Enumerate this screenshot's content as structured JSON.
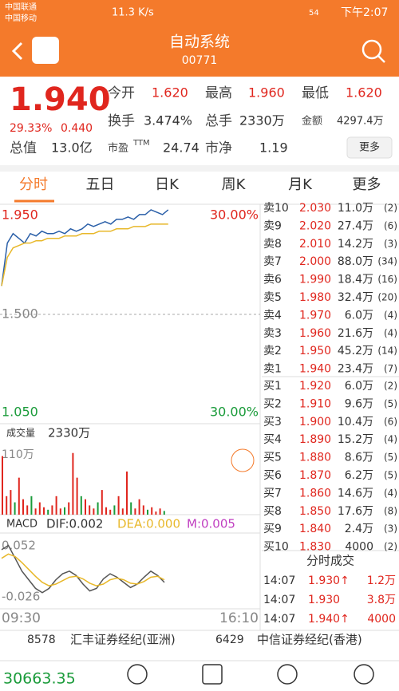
{
  "status": {
    "carrier1": "中国联通",
    "carrier2": "中国移动",
    "speed": "11.3 K/s",
    "battery": "54",
    "time": "下午2:07"
  },
  "header": {
    "title": "自动系统",
    "code": "00771"
  },
  "quote": {
    "price": "1.940",
    "change_pct": "29.33%",
    "change": "0.440",
    "fields": [
      [
        "今开",
        "1.620"
      ],
      [
        "最高",
        "1.960"
      ],
      [
        "最低",
        "1.620"
      ],
      [
        "换手",
        "3.474%"
      ],
      [
        "总手",
        "2330万"
      ],
      [
        "金额",
        "4297.4万"
      ],
      [
        "总值",
        "13.0亿"
      ],
      [
        "市盈",
        "24.74"
      ],
      [
        "市净",
        "1.19"
      ]
    ],
    "pe_sup": "TTM",
    "more": "更多"
  },
  "tabs": [
    "分时",
    "五日",
    "日K",
    "周K",
    "月K",
    "更多"
  ],
  "intraday": {
    "ylim": [
      1.05,
      1.95
    ],
    "yticks": [
      {
        "value": 1.95,
        "label": "1.950"
      },
      {
        "value": 1.5,
        "label": "1.500"
      },
      {
        "value": 1.05,
        "label": "1.050"
      }
    ],
    "pct_labels": [
      "30.00%",
      "30.00%"
    ],
    "price": [
      1.62,
      1.8,
      1.84,
      1.82,
      1.8,
      1.84,
      1.83,
      1.85,
      1.84,
      1.84,
      1.85,
      1.84,
      1.86,
      1.85,
      1.86,
      1.88,
      1.87,
      1.88,
      1.89,
      1.88,
      1.9,
      1.9,
      1.91,
      1.9,
      1.92,
      1.92,
      1.94,
      1.93,
      1.92,
      1.94
    ],
    "avg": [
      1.62,
      1.74,
      1.78,
      1.79,
      1.8,
      1.8,
      1.81,
      1.81,
      1.82,
      1.82,
      1.82,
      1.83,
      1.83,
      1.83,
      1.84,
      1.84,
      1.84,
      1.85,
      1.85,
      1.85,
      1.86,
      1.86,
      1.86,
      1.87,
      1.87,
      1.87,
      1.88,
      1.88,
      1.88,
      1.88
    ],
    "volume_label": "成交量",
    "volume_total": "2330万",
    "volume_ylim": [
      0,
      110
    ],
    "volume_ticks": [
      {
        "value": 110,
        "label": "110万"
      }
    ],
    "volume": [
      95,
      30,
      40,
      20,
      60,
      25,
      15,
      30,
      10,
      20,
      12,
      8,
      15,
      30,
      10,
      12,
      20,
      100,
      60,
      30,
      25,
      15,
      10,
      20,
      40,
      12,
      8,
      15,
      30,
      10,
      70,
      20,
      10,
      25,
      15,
      8,
      12,
      5,
      10,
      6
    ],
    "macd_label": "MACD",
    "dif": "DIF:0.002",
    "dea": "DEA:0.000",
    "m": "M:0.005",
    "macd_ylim": [
      -0.026,
      0.052
    ],
    "macd_ticks": [
      0.052,
      -0.026
    ],
    "dif_values": [
      0.04,
      0.045,
      0.03,
      0.015,
      0.005,
      -0.005,
      -0.01,
      -0.005,
      0.005,
      0.012,
      0.015,
      0.01,
      0.0,
      -0.008,
      -0.005,
      0.006,
      0.012,
      0.008,
      0.002,
      -0.004,
      0.0,
      0.008,
      0.015,
      0.01,
      0.002
    ],
    "dea_values": [
      0.03,
      0.035,
      0.032,
      0.025,
      0.017,
      0.009,
      0.002,
      -0.002,
      0.0,
      0.004,
      0.008,
      0.009,
      0.006,
      0.001,
      -0.002,
      0.0,
      0.005,
      0.007,
      0.005,
      0.001,
      0.0,
      0.003,
      0.008,
      0.009,
      0.005
    ],
    "times": [
      "09:30",
      "16:10"
    ]
  },
  "order_book": [
    [
      "卖10",
      "2.030",
      "11.0万",
      "(2)"
    ],
    [
      "卖9",
      "2.020",
      "27.4万",
      "(6)"
    ],
    [
      "卖8",
      "2.010",
      "14.2万",
      "(3)"
    ],
    [
      "卖7",
      "2.000",
      "88.0万",
      "(34)"
    ],
    [
      "卖6",
      "1.990",
      "18.4万",
      "(16)"
    ],
    [
      "卖5",
      "1.980",
      "32.4万",
      "(20)"
    ],
    [
      "卖4",
      "1.970",
      "6.0万",
      "(4)"
    ],
    [
      "卖3",
      "1.960",
      "21.6万",
      "(4)"
    ],
    [
      "卖2",
      "1.950",
      "45.2万",
      "(14)"
    ],
    [
      "卖1",
      "1.940",
      "23.4万",
      "(7)"
    ],
    [
      "买1",
      "1.920",
      "6.0万",
      "(2)"
    ],
    [
      "买2",
      "1.910",
      "9.6万",
      "(5)"
    ],
    [
      "买3",
      "1.900",
      "10.4万",
      "(6)"
    ],
    [
      "买4",
      "1.890",
      "15.2万",
      "(4)"
    ],
    [
      "买5",
      "1.880",
      "8.6万",
      "(5)"
    ],
    [
      "买6",
      "1.870",
      "6.2万",
      "(5)"
    ],
    [
      "买7",
      "1.860",
      "14.6万",
      "(4)"
    ],
    [
      "买8",
      "1.850",
      "17.6万",
      "(8)"
    ],
    [
      "买9",
      "1.840",
      "2.4万",
      "(3)"
    ],
    [
      "买10",
      "1.830",
      "4000",
      "(2)"
    ]
  ],
  "trades_title": "分时成交",
  "trades": [
    [
      "14:07",
      "1.930↑",
      "1.2万"
    ],
    [
      "14:07",
      "1.930",
      "3.8万"
    ],
    [
      "14:07",
      "1.940↑",
      "4000"
    ]
  ],
  "brokers": [
    "8578",
    "汇丰证券经纪(亚洲)",
    "6429",
    "中信证券经纪(香港)"
  ],
  "bottom": {
    "index": "30663.35"
  }
}
